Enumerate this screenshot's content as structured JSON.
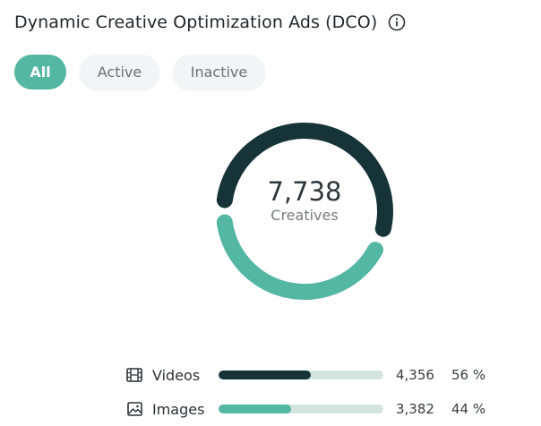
{
  "header": {
    "title": "Dynamic Creative Optimization Ads (DCO)",
    "info_icon": "info-icon"
  },
  "filters": [
    {
      "label": "All",
      "selected": true
    },
    {
      "label": "Active",
      "selected": false
    },
    {
      "label": "Inactive",
      "selected": false
    }
  ],
  "summary": {
    "total": "7,738",
    "label": "Creatives"
  },
  "colors": {
    "accent": "#53b7a2",
    "dark": "#163338",
    "track": "#d4e4e1"
  },
  "chart_data": {
    "type": "pie",
    "categories": [
      "Videos",
      "Images"
    ],
    "values": [
      4356,
      3382
    ],
    "percentages": [
      56,
      44
    ]
  },
  "legend": [
    {
      "icon": "film-icon",
      "label": "Videos",
      "count": "4,356",
      "percent": "56 %",
      "fraction": 0.56,
      "color": "#163338"
    },
    {
      "icon": "image-icon",
      "label": "Images",
      "count": "3,382",
      "percent": "44 %",
      "fraction": 0.44,
      "color": "#53b7a2"
    }
  ]
}
